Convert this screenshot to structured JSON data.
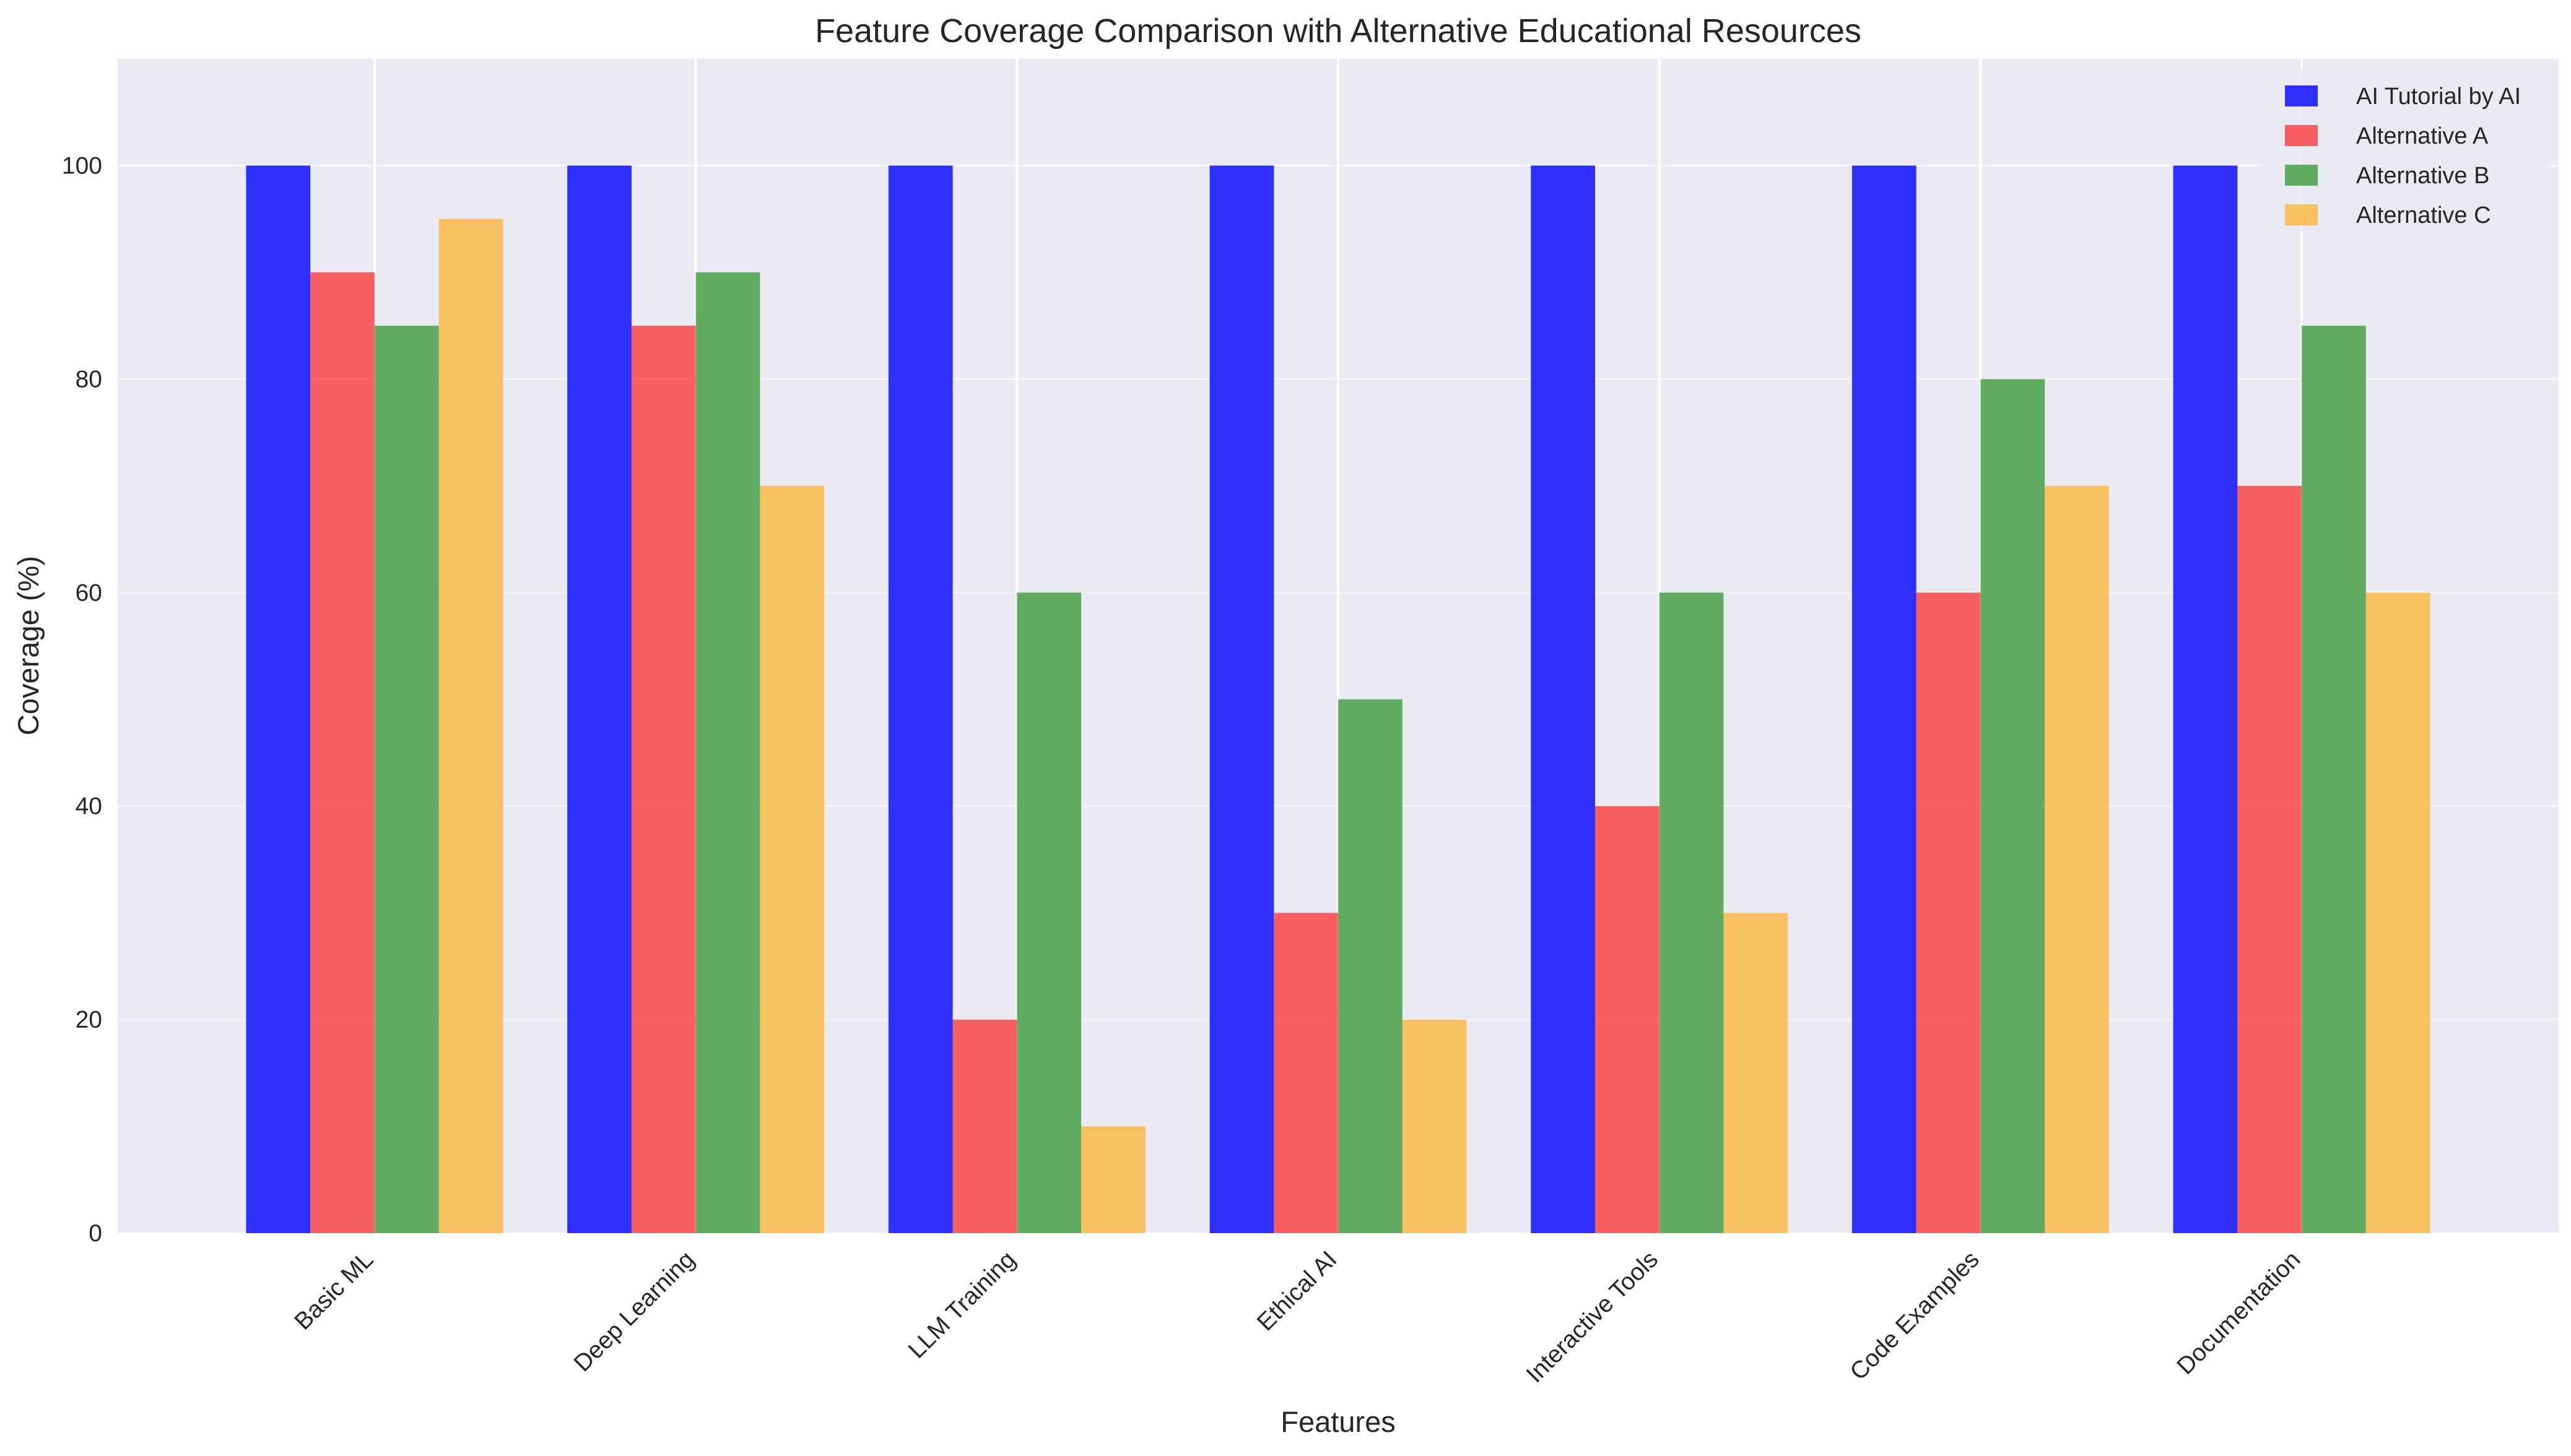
{
  "chart_data": {
    "type": "bar",
    "title": "Feature Coverage Comparison with Alternative Educational Resources",
    "xlabel": "Features",
    "ylabel": "Coverage (%)",
    "categories": [
      "Basic ML",
      "Deep Learning",
      "LLM Training",
      "Ethical AI",
      "Interactive Tools",
      "Code Examples",
      "Documentation"
    ],
    "series": [
      {
        "name": "AI Tutorial by AI",
        "color": "#0000ff",
        "values": [
          100,
          100,
          100,
          100,
          100,
          100,
          100
        ]
      },
      {
        "name": "Alternative A",
        "color": "#ff0000",
        "values": [
          90,
          85,
          20,
          30,
          40,
          60,
          70
        ]
      },
      {
        "name": "Alternative B",
        "color": "#008000",
        "values": [
          85,
          90,
          60,
          50,
          60,
          80,
          85
        ]
      },
      {
        "name": "Alternative C",
        "color": "#ffa500",
        "values": [
          95,
          70,
          10,
          20,
          30,
          70,
          60
        ]
      }
    ],
    "ylim": [
      0,
      110
    ],
    "yticks": [
      0,
      20,
      40,
      60,
      80,
      100
    ],
    "grid": true,
    "legend": "top-right",
    "background": "#eaeaf2"
  }
}
